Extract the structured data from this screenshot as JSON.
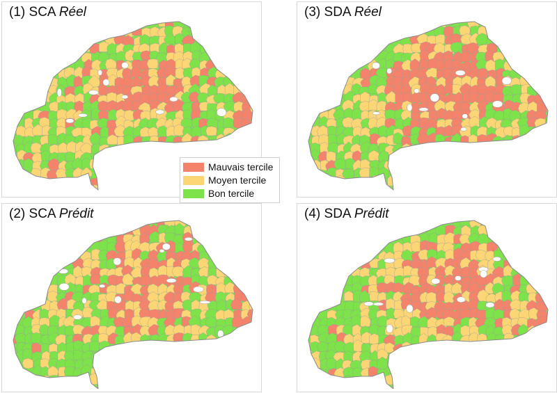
{
  "panels": [
    {
      "id": "p1",
      "number": "(1)",
      "indicator": "SCA",
      "status": "Réel"
    },
    {
      "id": "p3",
      "number": "(3)",
      "indicator": "SDA",
      "status": "Réel"
    },
    {
      "id": "p2",
      "number": "(2)",
      "indicator": "SCA",
      "status": "Prédit"
    },
    {
      "id": "p4",
      "number": "(4)",
      "indicator": "SDA",
      "status": "Prédit"
    }
  ],
  "legend": {
    "items": [
      {
        "label": "Mauvais tercile",
        "color": "#f4836b"
      },
      {
        "label": "Moyen tercile",
        "color": "#fcd675"
      },
      {
        "label": "Bon tercile",
        "color": "#7ee34a"
      }
    ]
  },
  "colors": {
    "mauvais": "#f4836b",
    "moyen": "#fcd675",
    "bon": "#7ee34a",
    "borders": "#9a9a9a",
    "outline": "#8a8a8a"
  }
}
